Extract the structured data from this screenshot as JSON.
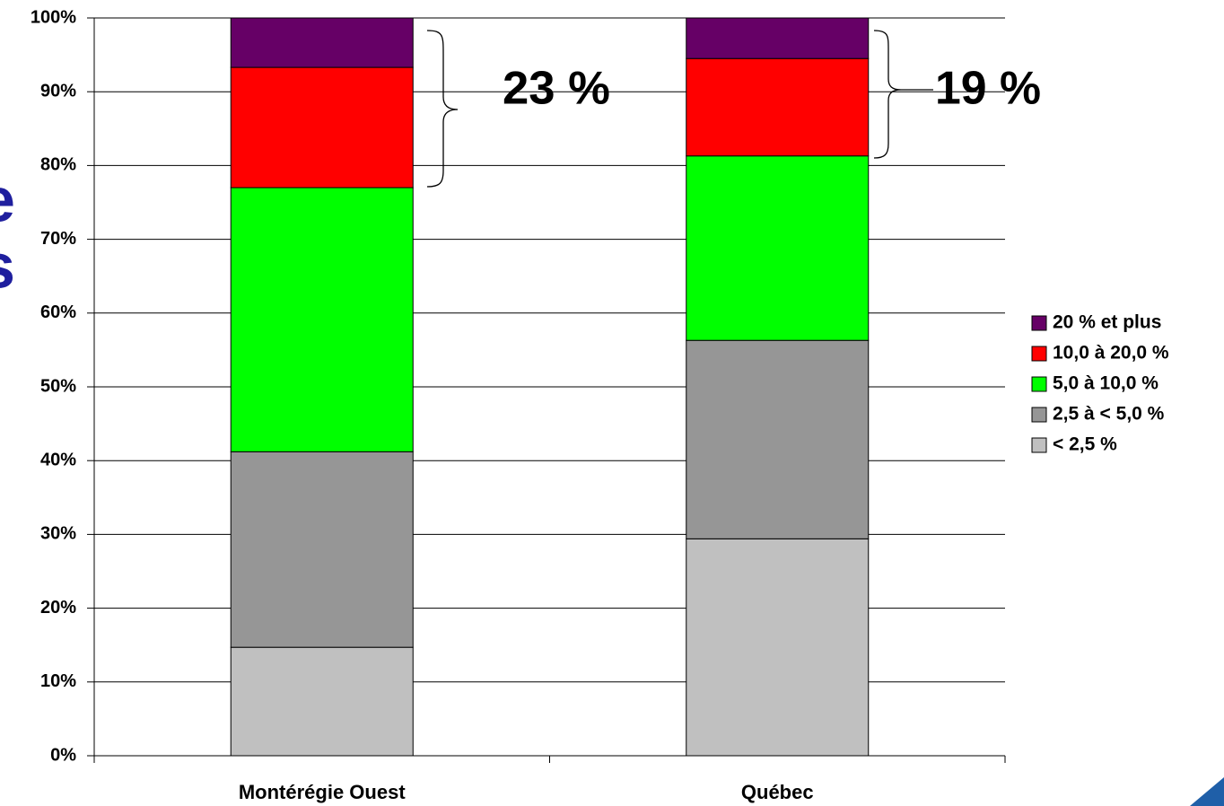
{
  "chart_data": {
    "type": "stacked_bar_100",
    "categories": [
      "Montérégie Ouest",
      "Québec"
    ],
    "series": [
      {
        "name": "< 2,5 %",
        "color": "#c0c0c0",
        "values": [
          14.7,
          29.4
        ]
      },
      {
        "name": "2,5 à < 5,0 %",
        "color": "#969696",
        "values": [
          26.5,
          26.9
        ]
      },
      {
        "name": "5,0 à 10,0 %",
        "color": "#00ff00",
        "values": [
          35.8,
          25.0
        ]
      },
      {
        "name": "10,0 à 20,0 %",
        "color": "#ff0000",
        "values": [
          16.3,
          13.2
        ]
      },
      {
        "name": "20 % et plus",
        "color": "#660066",
        "values": [
          6.7,
          5.5
        ]
      }
    ],
    "ylim": [
      0,
      100
    ],
    "yticks": [
      {
        "value": 0,
        "label": "0%"
      },
      {
        "value": 10,
        "label": "10%"
      },
      {
        "value": 20,
        "label": "20%"
      },
      {
        "value": 30,
        "label": "30%"
      },
      {
        "value": 40,
        "label": "40%"
      },
      {
        "value": 50,
        "label": "50%"
      },
      {
        "value": 60,
        "label": "60%"
      },
      {
        "value": 70,
        "label": "70%"
      },
      {
        "value": 80,
        "label": "80%"
      },
      {
        "value": 90,
        "label": "90%"
      },
      {
        "value": 100,
        "label": "100%"
      }
    ],
    "grid": true,
    "legend": "right",
    "annotations": [
      "23 %",
      "19 %"
    ],
    "fragments": [
      "e",
      "s"
    ]
  }
}
